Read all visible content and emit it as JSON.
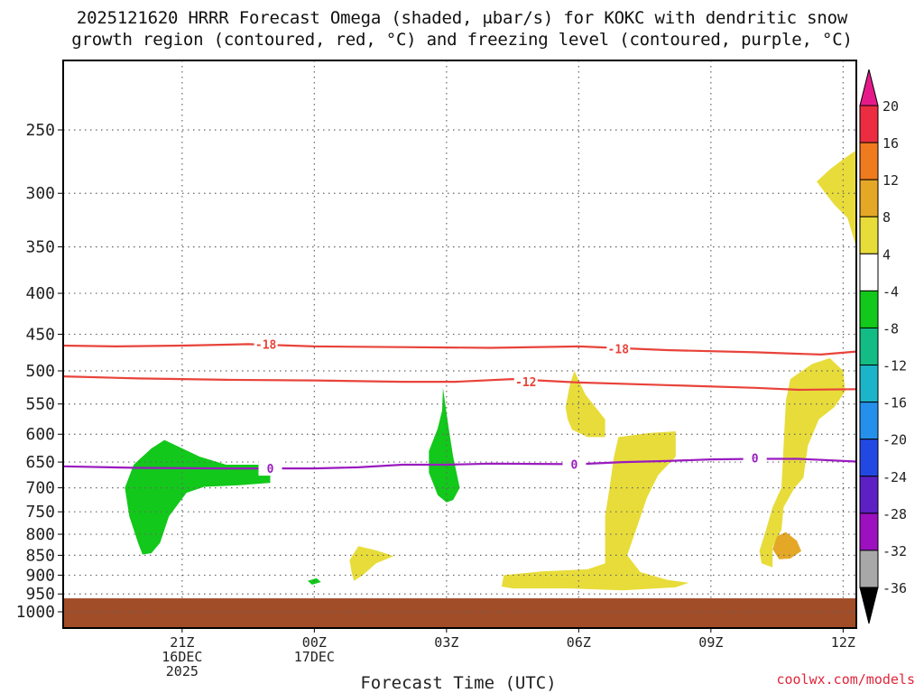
{
  "title_line1": "2025121620 HRRR Forecast Omega (shaded, μbar/s) for KOKC with dendritic snow",
  "title_line2": "growth region (contoured, red, °C) and freezing level (contoured, purple, °C)",
  "credit": "coolwx.com/models",
  "chart_data": {
    "type": "heatmap",
    "title": "2025121620 HRRR Forecast Omega (shaded, μbar/s) for KOKC with dendritic snow growth region (contoured, red, °C) and freezing level (contoured, purple, °C)",
    "xlabel": "Forecast Time (UTC)",
    "ylabel": "",
    "xlim_hours": [
      -1.7,
      16.3
    ],
    "ylim": [
      1050,
      200
    ],
    "y_scale": "log-pressure",
    "x_ticks": [
      {
        "hour": 1,
        "lines": [
          "21Z",
          "16DEC",
          "2025"
        ]
      },
      {
        "hour": 4,
        "lines": [
          "00Z",
          "17DEC"
        ]
      },
      {
        "hour": 7,
        "lines": [
          "03Z"
        ]
      },
      {
        "hour": 10,
        "lines": [
          "06Z"
        ]
      },
      {
        "hour": 13,
        "lines": [
          "09Z"
        ]
      },
      {
        "hour": 16,
        "lines": [
          "12Z"
        ]
      }
    ],
    "y_ticks": [
      250,
      300,
      350,
      400,
      450,
      500,
      550,
      600,
      650,
      700,
      750,
      800,
      850,
      900,
      950,
      1000
    ],
    "grid": true,
    "colorbar": {
      "levels": [
        20,
        16,
        12,
        8,
        4,
        -4,
        -8,
        -12,
        -16,
        -20,
        -24,
        -28,
        -32,
        -36
      ],
      "colors": [
        "#ec2c40",
        "#f07a1e",
        "#e4a826",
        "#e8dc3a",
        "#ffffff",
        "#12c81a",
        "#12bc84",
        "#1cb4c8",
        "#2490ec",
        "#2248e4",
        "#5c20c4",
        "#9c10c0",
        "#a8a8a8"
      ],
      "top_arrow_color": "#e6198a",
      "bottom_arrow_color": "#000000"
    },
    "contours": [
      {
        "label": "-18",
        "color": "#e8433a",
        "points": [
          [
            -1.7,
            465
          ],
          [
            -0.5,
            466
          ],
          [
            1,
            465
          ],
          [
            2.5,
            463
          ],
          [
            4,
            466
          ],
          [
            6,
            467
          ],
          [
            8,
            468
          ],
          [
            10,
            466
          ],
          [
            12,
            471
          ],
          [
            14,
            474
          ],
          [
            15.5,
            477
          ],
          [
            16.3,
            473
          ]
        ],
        "label_positions": [
          [
            2.9,
            463
          ],
          [
            10.9,
            469
          ]
        ]
      },
      {
        "label": "-12",
        "color": "#e8433a",
        "points": [
          [
            -1.7,
            508
          ],
          [
            0,
            511
          ],
          [
            2,
            513
          ],
          [
            4,
            514
          ],
          [
            6,
            516
          ],
          [
            7.2,
            516
          ],
          [
            8.5,
            512
          ],
          [
            10,
            517
          ],
          [
            12,
            521
          ],
          [
            14,
            525
          ],
          [
            15,
            528
          ],
          [
            16.3,
            527
          ]
        ],
        "label_positions": [
          [
            8.8,
            516
          ]
        ]
      },
      {
        "label": "0",
        "color": "#9a1bbf",
        "points": [
          [
            -1.7,
            658
          ],
          [
            0,
            661
          ],
          [
            2,
            662
          ],
          [
            3,
            662
          ],
          [
            4,
            662
          ],
          [
            5,
            660
          ],
          [
            6,
            655
          ],
          [
            7,
            655
          ],
          [
            8,
            653
          ],
          [
            10,
            654
          ],
          [
            11,
            650
          ],
          [
            12,
            648
          ],
          [
            13,
            645
          ],
          [
            14,
            644
          ],
          [
            15,
            644
          ],
          [
            16.3,
            649
          ]
        ],
        "label_positions": [
          [
            3.0,
            662
          ],
          [
            9.9,
            654
          ],
          [
            14.0,
            642
          ]
        ]
      }
    ],
    "shaded_regions": [
      {
        "color": "#12c81a",
        "level": "-4 to -8",
        "points": [
          [
            0.0,
            820
          ],
          [
            -0.2,
            760
          ],
          [
            -0.3,
            700
          ],
          [
            -0.1,
            655
          ],
          [
            0.3,
            625
          ],
          [
            0.6,
            610
          ],
          [
            1.4,
            640
          ],
          [
            2.0,
            655
          ],
          [
            3.0,
            655
          ],
          [
            3.0,
            690
          ],
          [
            2.3,
            695
          ],
          [
            1.5,
            698
          ],
          [
            1.1,
            710
          ],
          [
            0.7,
            760
          ],
          [
            0.5,
            820
          ],
          [
            0.3,
            845
          ],
          [
            0.1,
            848
          ]
        ]
      },
      {
        "color": "#12c81a",
        "level": "-4 to -8",
        "points": [
          [
            3.85,
            915
          ],
          [
            4.05,
            908
          ],
          [
            4.15,
            918
          ],
          [
            3.95,
            925
          ]
        ]
      },
      {
        "color": "#12c81a",
        "level": "-4 to -8",
        "points": [
          [
            6.8,
            715
          ],
          [
            6.6,
            670
          ],
          [
            6.6,
            630
          ],
          [
            6.8,
            590
          ],
          [
            6.9,
            560
          ],
          [
            6.92,
            525
          ],
          [
            7.05,
            590
          ],
          [
            7.15,
            640
          ],
          [
            7.3,
            700
          ],
          [
            7.15,
            725
          ],
          [
            7.0,
            730
          ]
        ]
      },
      {
        "color": "#e8dc3a",
        "level": "4 to 8",
        "points": [
          [
            4.85,
            895
          ],
          [
            4.8,
            862
          ],
          [
            5.0,
            828
          ],
          [
            5.4,
            838
          ],
          [
            5.8,
            852
          ],
          [
            5.4,
            870
          ],
          [
            5.1,
            900
          ],
          [
            4.9,
            915
          ]
        ]
      },
      {
        "color": "#e8dc3a",
        "level": "4 to 8",
        "points": [
          [
            9.7,
            555
          ],
          [
            9.8,
            520
          ],
          [
            9.9,
            500
          ],
          [
            10.15,
            535
          ],
          [
            10.6,
            575
          ],
          [
            10.6,
            605
          ],
          [
            10.2,
            605
          ],
          [
            9.85,
            592
          ],
          [
            9.75,
            575
          ]
        ]
      },
      {
        "color": "#e8dc3a",
        "level": "4 to 8",
        "points": [
          [
            8.25,
            930
          ],
          [
            8.3,
            900
          ],
          [
            9.2,
            890
          ],
          [
            10.2,
            885
          ],
          [
            10.6,
            870
          ],
          [
            10.6,
            820
          ],
          [
            10.6,
            760
          ],
          [
            10.7,
            700
          ],
          [
            10.8,
            640
          ],
          [
            10.9,
            605
          ],
          [
            11.6,
            598
          ],
          [
            12.2,
            595
          ],
          [
            12.2,
            640
          ],
          [
            11.8,
            675
          ],
          [
            11.55,
            720
          ],
          [
            11.3,
            790
          ],
          [
            11.1,
            850
          ],
          [
            11.4,
            892
          ],
          [
            12.0,
            912
          ],
          [
            12.5,
            920
          ],
          [
            12.2,
            932
          ],
          [
            11.0,
            940
          ],
          [
            9.8,
            935
          ],
          [
            8.5,
            935
          ]
        ]
      },
      {
        "color": "#e8dc3a",
        "level": "4 to 8",
        "points": [
          [
            14.4,
            880
          ],
          [
            14.4,
            830
          ],
          [
            14.6,
            790
          ],
          [
            14.65,
            740
          ],
          [
            14.9,
            700
          ],
          [
            15.1,
            680
          ],
          [
            15.2,
            620
          ],
          [
            15.45,
            575
          ],
          [
            15.8,
            555
          ],
          [
            16.05,
            530
          ],
          [
            16.0,
            500
          ],
          [
            15.7,
            482
          ],
          [
            15.3,
            490
          ],
          [
            14.8,
            512
          ],
          [
            14.7,
            545
          ],
          [
            14.65,
            620
          ],
          [
            14.6,
            700
          ],
          [
            14.4,
            740
          ],
          [
            14.25,
            790
          ],
          [
            14.1,
            840
          ],
          [
            14.15,
            870
          ]
        ]
      },
      {
        "color": "#e8dc3a",
        "level": "4 to 8",
        "points": [
          [
            15.4,
            290
          ],
          [
            15.7,
            280
          ],
          [
            16.0,
            272
          ],
          [
            16.3,
            265
          ],
          [
            16.3,
            350
          ],
          [
            16.1,
            322
          ],
          [
            15.8,
            310
          ],
          [
            15.6,
            300
          ]
        ]
      },
      {
        "color": "#e4a826",
        "level": "8 to 12",
        "points": [
          [
            14.4,
            835
          ],
          [
            14.5,
            805
          ],
          [
            14.7,
            795
          ],
          [
            14.95,
            815
          ],
          [
            15.05,
            840
          ],
          [
            14.8,
            858
          ],
          [
            14.55,
            860
          ]
        ]
      }
    ],
    "surface": {
      "color": "#a14d28",
      "top_hpa": 962
    }
  },
  "icons": {
    "colorbar_top_arrow": "up-triangle",
    "colorbar_bottom_arrow": "down-triangle"
  }
}
